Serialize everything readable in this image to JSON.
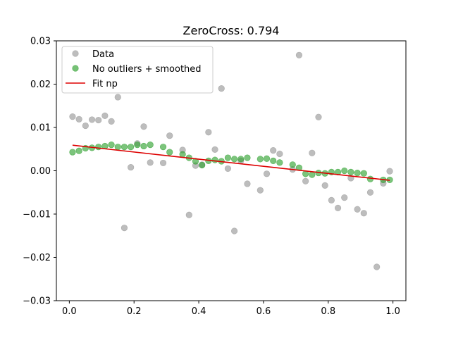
{
  "chart_data": {
    "type": "scatter",
    "title": "ZeroCross: 0.794",
    "xlabel": "",
    "ylabel": "",
    "xlim": [
      -0.04,
      1.04
    ],
    "ylim": [
      -0.03,
      0.03
    ],
    "xticks": [
      0.0,
      0.2,
      0.4,
      0.6,
      0.8,
      1.0
    ],
    "xtick_labels": [
      "0.0",
      "0.2",
      "0.4",
      "0.6",
      "0.8",
      "1.0"
    ],
    "yticks": [
      -0.03,
      -0.02,
      -0.01,
      0.0,
      0.01,
      0.02,
      0.03
    ],
    "ytick_labels": [
      "−0.03",
      "−0.02",
      "−0.01",
      "0.00",
      "0.01",
      "0.02",
      "0.03"
    ],
    "grid": false,
    "legend_position": "top-left",
    "series": [
      {
        "name": "Data",
        "kind": "scatter",
        "color": "#999999",
        "points": [
          [
            0.01,
            0.0125
          ],
          [
            0.03,
            0.0119
          ],
          [
            0.05,
            0.0104
          ],
          [
            0.07,
            0.0118
          ],
          [
            0.09,
            0.0117
          ],
          [
            0.11,
            0.0127
          ],
          [
            0.13,
            0.0114
          ],
          [
            0.15,
            0.017
          ],
          [
            0.17,
            -0.0132
          ],
          [
            0.19,
            0.0008
          ],
          [
            0.21,
            0.0063
          ],
          [
            0.23,
            0.0102
          ],
          [
            0.25,
            0.0019
          ],
          [
            0.29,
            0.0018
          ],
          [
            0.31,
            0.0081
          ],
          [
            0.35,
            0.0048
          ],
          [
            0.37,
            -0.0102
          ],
          [
            0.39,
            0.0012
          ],
          [
            0.41,
            0.0014
          ],
          [
            0.43,
            0.0089
          ],
          [
            0.45,
            0.0049
          ],
          [
            0.47,
            0.019
          ],
          [
            0.49,
            0.0005
          ],
          [
            0.51,
            -0.0139
          ],
          [
            0.53,
            0.0023
          ],
          [
            0.55,
            -0.003
          ],
          [
            0.59,
            -0.0045
          ],
          [
            0.61,
            -0.0007
          ],
          [
            0.63,
            0.0047
          ],
          [
            0.65,
            0.0039
          ],
          [
            0.69,
            0.0003
          ],
          [
            0.71,
            0.0267
          ],
          [
            0.73,
            -0.0024
          ],
          [
            0.75,
            0.0041
          ],
          [
            0.77,
            0.0124
          ],
          [
            0.79,
            -0.0034
          ],
          [
            0.81,
            -0.0068
          ],
          [
            0.83,
            -0.0086
          ],
          [
            0.85,
            -0.0062
          ],
          [
            0.87,
            -0.0017
          ],
          [
            0.89,
            -0.0089
          ],
          [
            0.91,
            -0.0098
          ],
          [
            0.93,
            -0.005
          ],
          [
            0.95,
            -0.0222
          ],
          [
            0.97,
            -0.0029
          ],
          [
            0.99,
            -0.0001
          ]
        ]
      },
      {
        "name": "No outliers + smoothed",
        "kind": "scatter",
        "color": "#2ca02c",
        "points": [
          [
            0.01,
            0.0043
          ],
          [
            0.03,
            0.0046
          ],
          [
            0.05,
            0.0052
          ],
          [
            0.07,
            0.0053
          ],
          [
            0.09,
            0.0055
          ],
          [
            0.11,
            0.0057
          ],
          [
            0.13,
            0.006
          ],
          [
            0.15,
            0.0055
          ],
          [
            0.17,
            0.0055
          ],
          [
            0.19,
            0.0055
          ],
          [
            0.21,
            0.006
          ],
          [
            0.23,
            0.0057
          ],
          [
            0.25,
            0.006
          ],
          [
            0.29,
            0.0055
          ],
          [
            0.31,
            0.0043
          ],
          [
            0.35,
            0.0038
          ],
          [
            0.37,
            0.003
          ],
          [
            0.39,
            0.0022
          ],
          [
            0.41,
            0.0013
          ],
          [
            0.43,
            0.0023
          ],
          [
            0.45,
            0.0025
          ],
          [
            0.47,
            0.0022
          ],
          [
            0.49,
            0.003
          ],
          [
            0.51,
            0.0027
          ],
          [
            0.53,
            0.0027
          ],
          [
            0.55,
            0.003
          ],
          [
            0.59,
            0.0027
          ],
          [
            0.61,
            0.0028
          ],
          [
            0.63,
            0.0023
          ],
          [
            0.65,
            0.0019
          ],
          [
            0.69,
            0.0014
          ],
          [
            0.71,
            0.0007
          ],
          [
            0.73,
            -0.0007
          ],
          [
            0.75,
            -0.0009
          ],
          [
            0.77,
            -0.0005
          ],
          [
            0.79,
            -0.0006
          ],
          [
            0.81,
            -0.0003
          ],
          [
            0.83,
            -0.0003
          ],
          [
            0.85,
            0.0
          ],
          [
            0.87,
            -0.0003
          ],
          [
            0.89,
            -0.0005
          ],
          [
            0.91,
            -0.0006
          ],
          [
            0.93,
            -0.0019
          ],
          [
            0.97,
            -0.0021
          ],
          [
            0.99,
            -0.0021
          ]
        ]
      },
      {
        "name": "Fit np",
        "kind": "line",
        "color": "#dd0000",
        "points": [
          [
            0.01,
            0.0059
          ],
          [
            0.99,
            -0.0022
          ]
        ]
      }
    ]
  }
}
